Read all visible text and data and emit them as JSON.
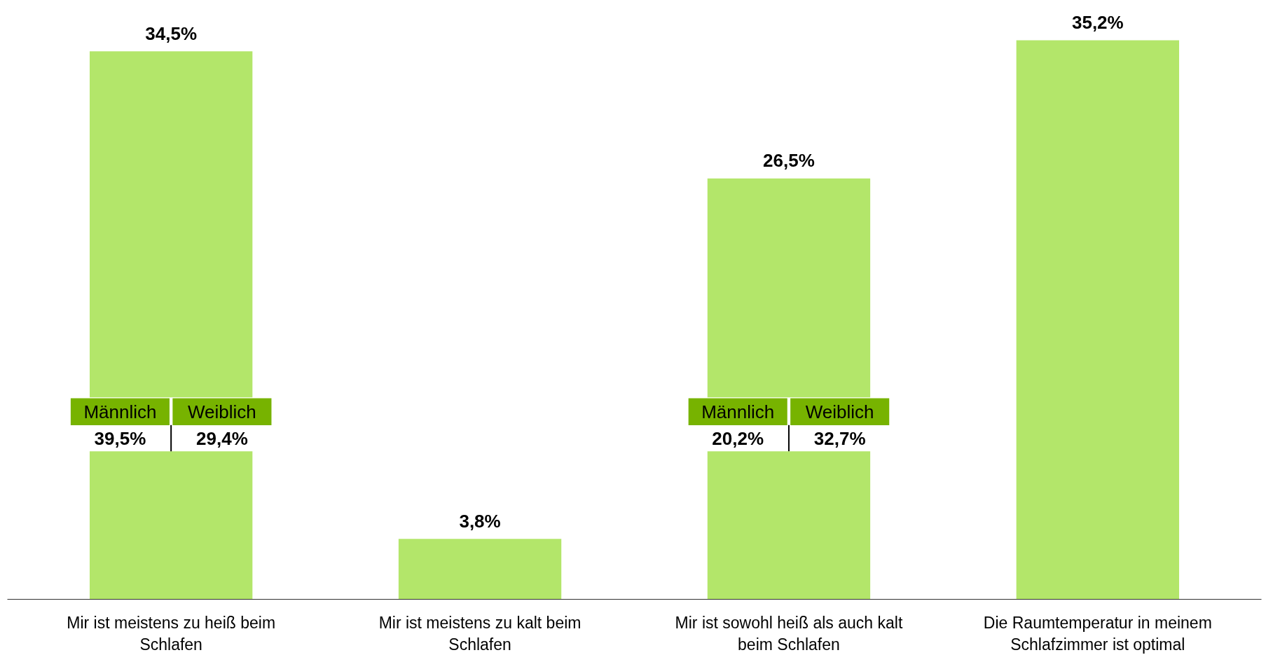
{
  "chart_data": {
    "type": "bar",
    "categories": [
      "Mir ist meistens zu heiß beim Schlafen",
      "Mir ist meistens zu kalt beim Schlafen",
      "Mir ist sowohl heiß als auch kalt beim Schlafen",
      "Die Raumtemperatur in meinem Schlafzimmer ist optimal"
    ],
    "values": [
      34.5,
      3.8,
      26.5,
      35.2
    ],
    "value_labels": [
      "34,5%",
      "3,8%",
      "26,5%",
      "35,2%"
    ],
    "color": "#b3e66a",
    "tick_labels": "x",
    "annotations": [
      "Männlich",
      "Weiblich",
      "39,5%",
      "29,4%",
      "Männlich",
      "Weiblich",
      "20,2%",
      "32,7%"
    ]
  }
}
